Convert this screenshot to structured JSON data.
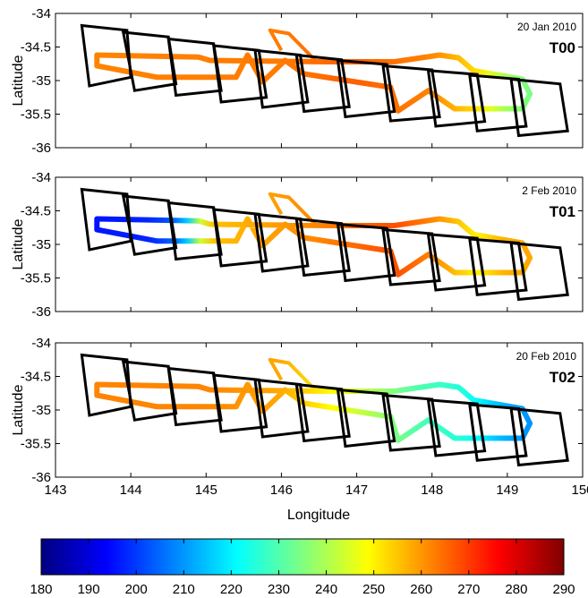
{
  "chart_data": {
    "type": "scatter",
    "description_free": true,
    "xlabel": "Longitude",
    "ylabel": "Latitude",
    "xlim": [
      143,
      150
    ],
    "ylim": [
      -36,
      -34
    ],
    "xticks": [
      "143",
      "144",
      "145",
      "146",
      "147",
      "148",
      "149",
      "150"
    ],
    "yticks": [
      "-34",
      "-34.5",
      "-35",
      "-35.5",
      "-36"
    ],
    "grid": false,
    "colormap": "jet",
    "colorbar": {
      "range": [
        180,
        290
      ],
      "ticks": [
        "180",
        "190",
        "200",
        "210",
        "220",
        "230",
        "240",
        "250",
        "260",
        "270",
        "280",
        "290"
      ],
      "placement": "bottom"
    },
    "track": [
      [
        143.55,
        -34.62
      ],
      [
        144.9,
        -34.65
      ],
      [
        145.05,
        -34.7
      ],
      [
        146.6,
        -34.72
      ],
      [
        147.5,
        -34.72
      ],
      [
        148.1,
        -34.62
      ],
      [
        148.35,
        -34.66
      ],
      [
        148.55,
        -34.85
      ],
      [
        149.2,
        -34.98
      ],
      [
        149.3,
        -35.2
      ],
      [
        149.2,
        -35.42
      ],
      [
        148.3,
        -35.42
      ],
      [
        147.95,
        -35.15
      ],
      [
        147.55,
        -35.45
      ],
      [
        147.45,
        -35.1
      ],
      [
        146.3,
        -34.9
      ],
      [
        146.05,
        -34.7
      ],
      [
        145.75,
        -35.02
      ],
      [
        145.55,
        -34.62
      ],
      [
        145.4,
        -34.95
      ],
      [
        144.35,
        -34.95
      ],
      [
        143.55,
        -34.78
      ],
      [
        143.55,
        -34.62
      ]
    ],
    "branch": [
      [
        146.0,
        -34.55
      ],
      [
        145.85,
        -34.25
      ],
      [
        146.1,
        -34.3
      ],
      [
        146.45,
        -34.7
      ]
    ],
    "boxes": [
      [
        [
          143.35,
          -34.18
        ],
        [
          143.95,
          -34.25
        ],
        [
          144.0,
          -34.95
        ],
        [
          143.45,
          -35.08
        ]
      ],
      [
        [
          143.9,
          -34.28
        ],
        [
          144.5,
          -34.35
        ],
        [
          144.6,
          -35.05
        ],
        [
          144.05,
          -35.15
        ]
      ],
      [
        [
          144.5,
          -34.38
        ],
        [
          145.1,
          -34.45
        ],
        [
          145.2,
          -35.15
        ],
        [
          144.6,
          -35.22
        ]
      ],
      [
        [
          145.1,
          -34.48
        ],
        [
          145.7,
          -34.55
        ],
        [
          145.8,
          -35.25
        ],
        [
          145.2,
          -35.32
        ]
      ],
      [
        [
          145.65,
          -34.55
        ],
        [
          146.25,
          -34.62
        ],
        [
          146.35,
          -35.32
        ],
        [
          145.75,
          -35.4
        ]
      ],
      [
        [
          146.2,
          -34.62
        ],
        [
          146.8,
          -34.69
        ],
        [
          146.9,
          -35.39
        ],
        [
          146.3,
          -35.46
        ]
      ],
      [
        [
          146.75,
          -34.7
        ],
        [
          147.4,
          -34.76
        ],
        [
          147.5,
          -35.46
        ],
        [
          146.85,
          -35.54
        ]
      ],
      [
        [
          147.35,
          -34.78
        ],
        [
          148.0,
          -34.84
        ],
        [
          148.1,
          -35.54
        ],
        [
          147.45,
          -35.6
        ]
      ],
      [
        [
          147.95,
          -34.85
        ],
        [
          148.6,
          -34.91
        ],
        [
          148.7,
          -35.61
        ],
        [
          148.05,
          -35.68
        ]
      ],
      [
        [
          148.5,
          -34.92
        ],
        [
          149.15,
          -34.98
        ],
        [
          149.25,
          -35.68
        ],
        [
          148.6,
          -35.75
        ]
      ],
      [
        [
          149.05,
          -34.98
        ],
        [
          149.7,
          -35.05
        ],
        [
          149.8,
          -35.75
        ],
        [
          149.15,
          -35.82
        ]
      ]
    ],
    "panels": [
      {
        "date": "20 Jan 2010",
        "tag": "T00",
        "color_stops": [
          [
            143.3,
            262
          ],
          [
            146.0,
            263
          ],
          [
            147.0,
            266
          ],
          [
            148.0,
            262
          ],
          [
            148.6,
            252
          ],
          [
            149.0,
            238
          ],
          [
            149.5,
            232
          ],
          [
            150,
            232
          ]
        ]
      },
      {
        "date": "2 Feb 2010",
        "tag": "T01",
        "color_stops": [
          [
            143.3,
            195
          ],
          [
            144.3,
            198
          ],
          [
            144.7,
            208
          ],
          [
            145.0,
            255
          ],
          [
            146.5,
            262
          ],
          [
            147.5,
            268
          ],
          [
            148.0,
            262
          ],
          [
            148.6,
            250
          ],
          [
            149.0,
            258
          ],
          [
            150,
            258
          ]
        ]
      },
      {
        "date": "20 Feb 2010",
        "tag": "T02",
        "color_stops": [
          [
            143.3,
            262
          ],
          [
            145.0,
            262
          ],
          [
            146.0,
            258
          ],
          [
            146.6,
            250
          ],
          [
            147.2,
            240
          ],
          [
            147.8,
            230
          ],
          [
            148.4,
            225
          ],
          [
            149.0,
            212
          ],
          [
            149.5,
            208
          ],
          [
            150,
            208
          ]
        ]
      }
    ]
  }
}
